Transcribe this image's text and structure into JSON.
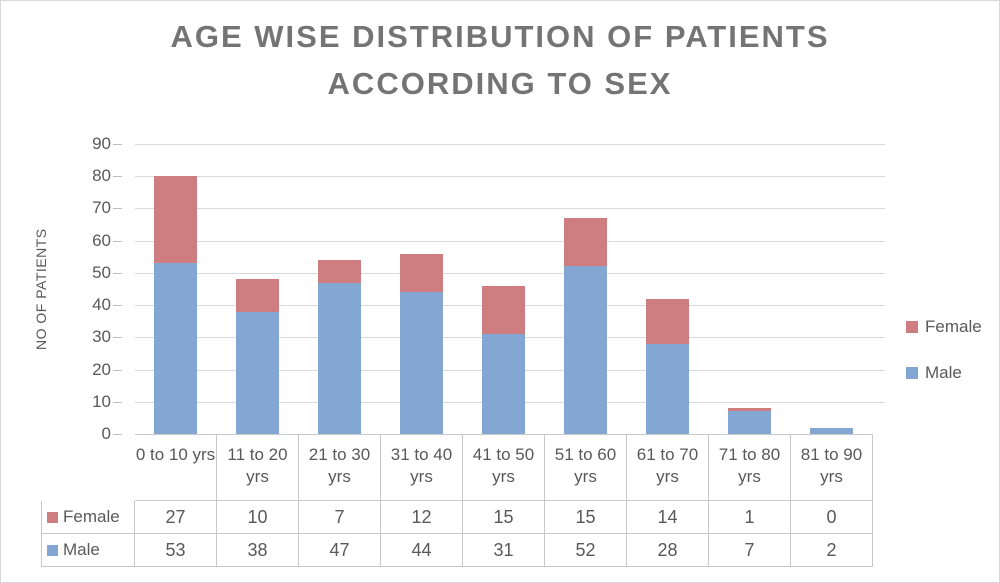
{
  "chart_data": {
    "type": "bar",
    "stacked": true,
    "title": "AGE WISE DISTRIBUTION OF PATIENTS ACCORDING TO SEX",
    "title_lines": [
      "AGE WISE DISTRIBUTION OF PATIENTS",
      "ACCORDING TO SEX"
    ],
    "xlabel": "",
    "ylabel": "NO OF PATIENTS",
    "categories": [
      "0 to 10 yrs",
      "11 to 20 yrs",
      "21 to 30 yrs",
      "31 to 40 yrs",
      "41 to 50 yrs",
      "51 to 60 yrs",
      "61 to 70 yrs",
      "71 to 80 yrs",
      "81 to 90 yrs"
    ],
    "series": [
      {
        "name": "Male",
        "color": "#84A6D2",
        "values": [
          53,
          38,
          47,
          44,
          31,
          52,
          28,
          7,
          2
        ]
      },
      {
        "name": "Female",
        "color": "#CE7D81",
        "values": [
          27,
          10,
          7,
          12,
          15,
          15,
          14,
          1,
          0
        ]
      }
    ],
    "ylim": [
      0,
      90
    ],
    "yticks": [
      90,
      80,
      70,
      60,
      50,
      40,
      30,
      20,
      10,
      0
    ],
    "grid": true,
    "legend_position": "right",
    "legend_order": [
      "Female",
      "Male"
    ],
    "data_table_rows": [
      "Female",
      "Male"
    ],
    "colors": {
      "background": "#FFFFFF",
      "gridline": "#D9D9D9",
      "tick": "#BFBFBF",
      "text": "#595959",
      "title": "#747474",
      "table_border": "#C8C8C8"
    }
  }
}
